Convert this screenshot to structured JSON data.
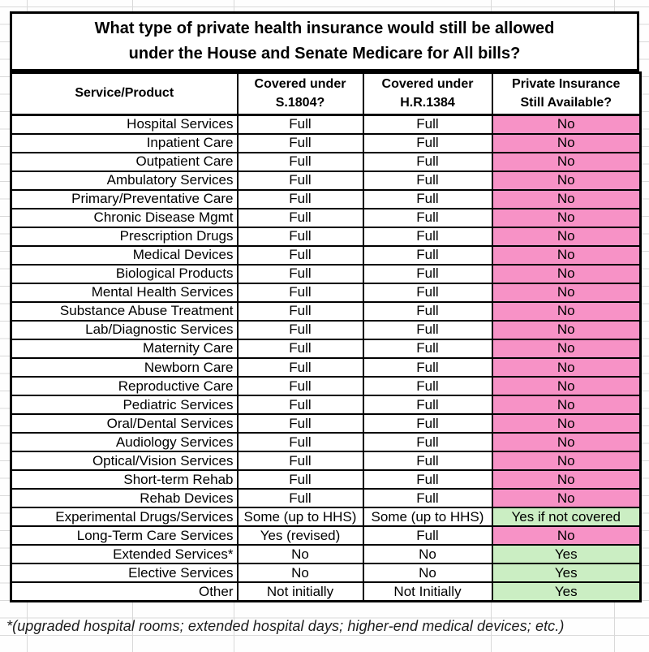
{
  "title": {
    "text": "What type of private health insurance would still be allowed\nunder the House and Senate Medicare for All bills?"
  },
  "table": {
    "headers": [
      "Service/Product",
      "Covered under\nS.1804?",
      "Covered under\nH.R.1384",
      "Private Insurance\nStill Available?"
    ]
  },
  "footnote": "*(upgraded hospital rooms; extended hospital days; higher-end medical devices; etc.)",
  "colors": {
    "pink_bg": "#f792c6",
    "pink_text": "#400d24",
    "green_bg": "#cbeec3",
    "green_text": "#1c521c",
    "border": "#000000",
    "grid_line": "#d9d9d9"
  },
  "chart_data": {
    "type": "table",
    "title": "What type of private health insurance would still be allowed under the House and Senate Medicare for All bills?",
    "columns": [
      "Service/Product",
      "Covered under S.1804?",
      "Covered under H.R.1384",
      "Private Insurance Still Available?"
    ],
    "rows": [
      [
        "Hospital Services",
        "Full",
        "Full",
        "No"
      ],
      [
        "Inpatient Care",
        "Full",
        "Full",
        "No"
      ],
      [
        "Outpatient Care",
        "Full",
        "Full",
        "No"
      ],
      [
        "Ambulatory Services",
        "Full",
        "Full",
        "No"
      ],
      [
        "Primary/Preventative Care",
        "Full",
        "Full",
        "No"
      ],
      [
        "Chronic Disease Mgmt",
        "Full",
        "Full",
        "No"
      ],
      [
        "Prescription Drugs",
        "Full",
        "Full",
        "No"
      ],
      [
        "Medical Devices",
        "Full",
        "Full",
        "No"
      ],
      [
        "Biological Products",
        "Full",
        "Full",
        "No"
      ],
      [
        "Mental Health Services",
        "Full",
        "Full",
        "No"
      ],
      [
        "Substance Abuse Treatment",
        "Full",
        "Full",
        "No"
      ],
      [
        "Lab/Diagnostic Services",
        "Full",
        "Full",
        "No"
      ],
      [
        "Maternity Care",
        "Full",
        "Full",
        "No"
      ],
      [
        "Newborn Care",
        "Full",
        "Full",
        "No"
      ],
      [
        "Reproductive Care",
        "Full",
        "Full",
        "No"
      ],
      [
        "Pediatric Services",
        "Full",
        "Full",
        "No"
      ],
      [
        "Oral/Dental Services",
        "Full",
        "Full",
        "No"
      ],
      [
        "Audiology Services",
        "Full",
        "Full",
        "No"
      ],
      [
        "Optical/Vision Services",
        "Full",
        "Full",
        "No"
      ],
      [
        "Short-term Rehab",
        "Full",
        "Full",
        "No"
      ],
      [
        "Rehab Devices",
        "Full",
        "Full",
        "No"
      ],
      [
        "Experimental Drugs/Services",
        "Some (up to HHS)",
        "Some (up to HHS)",
        "Yes if not covered"
      ],
      [
        "Long-Term Care Services",
        "Yes (revised)",
        "Full",
        "No"
      ],
      [
        "Extended Services*",
        "No",
        "No",
        "Yes"
      ],
      [
        "Elective Services",
        "No",
        "No",
        "Yes"
      ],
      [
        "Other",
        "Not initially",
        "Not Initially",
        "Yes"
      ]
    ],
    "footnote": "*(upgraded hospital rooms; extended hospital days; higher-end medical devices; etc.)",
    "layout": {
      "no_cells_background": "pink",
      "yes_cells_background": "light-green",
      "first_column_align": "right",
      "value_columns_align": "center"
    }
  }
}
